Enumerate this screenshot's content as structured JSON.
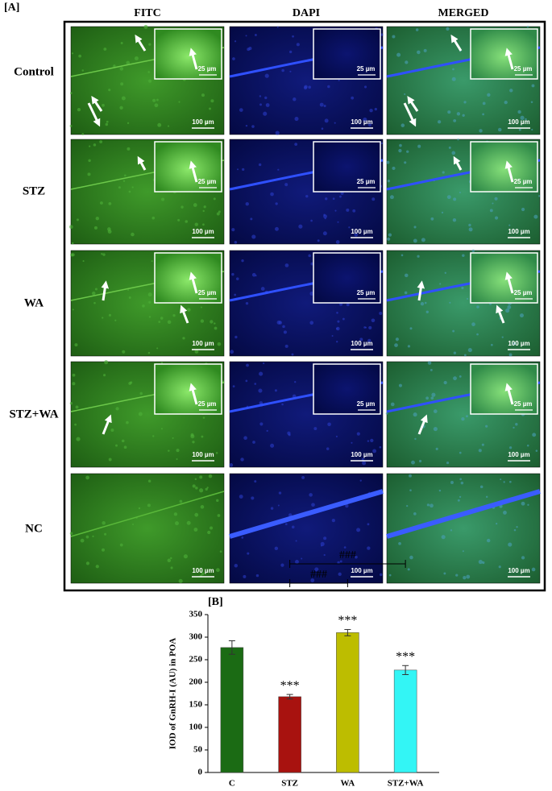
{
  "panel_a": {
    "label": "[A]",
    "columns": [
      "FITC",
      "DAPI",
      "MERGED"
    ],
    "rows": [
      {
        "label": "Control",
        "scale": "100 µm",
        "inset_scale": "25 µm"
      },
      {
        "label": "STZ",
        "scale": "100 µm",
        "inset_scale": "25 µm"
      },
      {
        "label": "WA",
        "scale": "100 µm",
        "inset_scale": "25 µm"
      },
      {
        "label": "STZ+WA",
        "scale": "100 µm",
        "inset_scale": "25 µm"
      },
      {
        "label": "NC",
        "scale": "100 µm"
      }
    ]
  },
  "panel_b": {
    "label": "[B]"
  },
  "chart_data": {
    "type": "bar",
    "ylabel": "IOD of GnRH-I (AU) in POA",
    "categories": [
      "C",
      "STZ",
      "WA",
      "STZ+WA"
    ],
    "values": [
      277,
      168,
      310,
      227
    ],
    "errors": [
      15,
      5,
      7,
      10
    ],
    "colors": [
      "#1b6b14",
      "#a8120f",
      "#bdbd00",
      "#33f5f5"
    ],
    "significance": [
      null,
      "***",
      "***",
      "***"
    ],
    "comparisons": [
      {
        "from": 1,
        "to": 2,
        "label": "###"
      },
      {
        "from": 1,
        "to": 3,
        "label": "###"
      }
    ],
    "ylim": [
      0,
      350
    ],
    "yticks": [
      0,
      50,
      100,
      150,
      200,
      250,
      300,
      350
    ]
  }
}
